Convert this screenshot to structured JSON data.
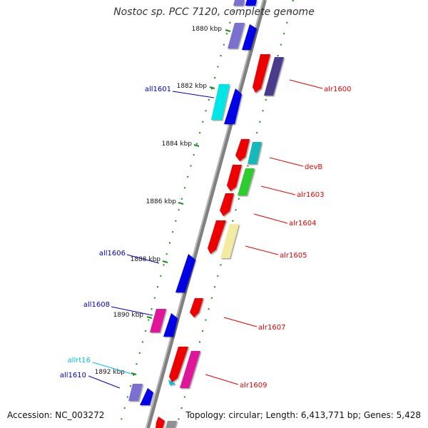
{
  "title": "Nostoc sp. PCC 7120, complete genome",
  "accession": "Accession: NC_003272",
  "summary": "Topology: circular; Length: 6,413,771 bp; Genes: 5,428",
  "kbp_marks": [
    {
      "label": "1880 kbp",
      "pos": 1880
    },
    {
      "label": "1882 kbp",
      "pos": 1882
    },
    {
      "label": "1884 kbp",
      "pos": 1884
    },
    {
      "label": "1886 kbp",
      "pos": 1886
    },
    {
      "label": "1888 kbp",
      "pos": 1888
    },
    {
      "label": "1890 kbp",
      "pos": 1890
    },
    {
      "label": "1892 kbp",
      "pos": 1892
    }
  ],
  "genes": [
    {
      "name": "all1601",
      "strand": "minus",
      "color": "#0000c0"
    },
    {
      "name": "all1606",
      "strand": "minus",
      "color": "#0000c0"
    },
    {
      "name": "all1608",
      "strand": "minus",
      "color": "#0000c0"
    },
    {
      "name": "allrt16",
      "strand": "minus",
      "color": "#00bfe6"
    },
    {
      "name": "all1610",
      "strand": "minus",
      "color": "#0000c0"
    },
    {
      "name": "alr1600",
      "strand": "plus",
      "color": "#d00000"
    },
    {
      "name": "devB",
      "strand": "plus",
      "color": "#d00000"
    },
    {
      "name": "alr1603",
      "strand": "plus",
      "color": "#d00000"
    },
    {
      "name": "alr1604",
      "strand": "plus",
      "color": "#d00000"
    },
    {
      "name": "alr1605",
      "strand": "plus",
      "color": "#d00000"
    },
    {
      "name": "alr1607",
      "strand": "plus",
      "color": "#d00000"
    },
    {
      "name": "alr1609",
      "strand": "plus",
      "color": "#d00000"
    }
  ],
  "colors": {
    "backbone": "#808080",
    "tick": "#1a8c1a",
    "red": "#ee0000",
    "blue": "#0000e6",
    "violet": "#7a6fd0",
    "cyan": "#00e5e5",
    "teal": "#16b8b8",
    "green": "#2ecc2e",
    "magenta": "#e0199a",
    "yellow": "#f2eba0",
    "dark_violet": "#4b3a8c",
    "grey": "#909090"
  }
}
